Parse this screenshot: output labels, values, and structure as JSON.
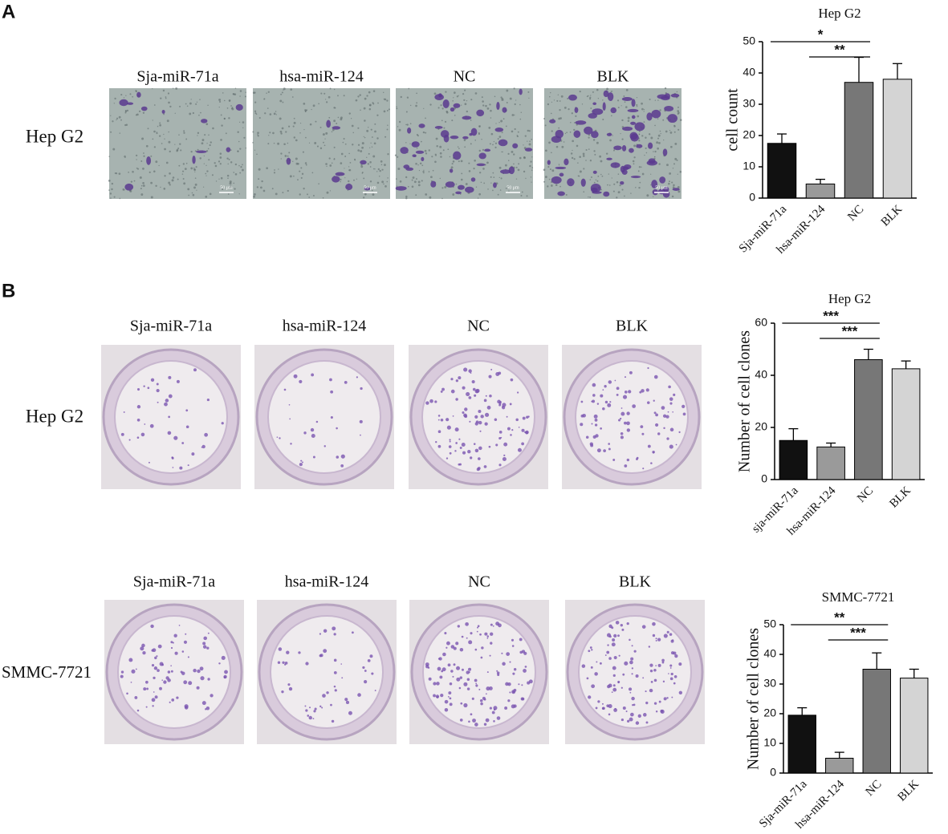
{
  "figure": {
    "scale_bar": "50 μm",
    "panel_a": {
      "label": "A",
      "row_label": "Hep G2",
      "columns": [
        "Sja-miR-71a",
        "hsa-miR-124",
        "NC",
        "BLK"
      ]
    },
    "panel_b": {
      "label": "B",
      "rows": [
        {
          "row_label": "Hep G2",
          "columns": [
            "Sja-miR-71a",
            "hsa-miR-124",
            "NC",
            "BLK"
          ]
        },
        {
          "row_label": "SMMC-7721",
          "columns": [
            "Sja-miR-71a",
            "hsa-miR-124",
            "NC",
            "BLK"
          ]
        }
      ]
    }
  },
  "chart_data": [
    {
      "type": "bar",
      "title": "Hep G2",
      "y_label": "cell count",
      "categories": [
        "Sja-miR-71a",
        "hsa-miR-124",
        "NC",
        "BLK"
      ],
      "values": [
        17.5,
        4.5,
        37,
        38
      ],
      "errors": [
        3,
        1.5,
        8,
        5
      ],
      "colors": [
        "#111111",
        "#9a9a9a",
        "#777777",
        "#d4d4d4"
      ],
      "ylim": [
        0,
        50
      ],
      "yticks": [
        0,
        10,
        20,
        30,
        40,
        50
      ],
      "annotations": [
        {
          "text": "*",
          "between": [
            "Sja-miR-71a",
            "NC"
          ]
        },
        {
          "text": "**",
          "between": [
            "hsa-miR-124",
            "NC"
          ]
        }
      ]
    },
    {
      "type": "bar",
      "title": "Hep G2",
      "y_label": "Number of cell clones",
      "categories": [
        "sja-miR-71a",
        "hsa-miR-124",
        "NC",
        "BLK"
      ],
      "values": [
        15,
        12.5,
        46,
        42.5
      ],
      "errors": [
        4.5,
        1.5,
        4,
        3
      ],
      "colors": [
        "#111111",
        "#9a9a9a",
        "#777777",
        "#d4d4d4"
      ],
      "ylim": [
        0,
        60
      ],
      "yticks": [
        0,
        20,
        40,
        60
      ],
      "annotations": [
        {
          "text": "***",
          "between": [
            "sja-miR-71a",
            "NC"
          ]
        },
        {
          "text": "***",
          "between": [
            "hsa-miR-124",
            "NC"
          ]
        }
      ]
    },
    {
      "type": "bar",
      "title": "SMMC-7721",
      "y_label": "Number of cell clones",
      "categories": [
        "Sja-miR-71a",
        "hsa-miR-124",
        "NC",
        "BLK"
      ],
      "values": [
        19.5,
        5,
        35,
        32
      ],
      "errors": [
        2.5,
        2,
        5.5,
        3
      ],
      "colors": [
        "#111111",
        "#9a9a9a",
        "#777777",
        "#d4d4d4"
      ],
      "ylim": [
        0,
        50
      ],
      "yticks": [
        0,
        10,
        20,
        30,
        40,
        50
      ],
      "annotations": [
        {
          "text": "**",
          "between": [
            "Sja-miR-71a",
            "NC"
          ]
        },
        {
          "text": "***",
          "between": [
            "hsa-miR-124",
            "NC"
          ]
        }
      ]
    }
  ]
}
